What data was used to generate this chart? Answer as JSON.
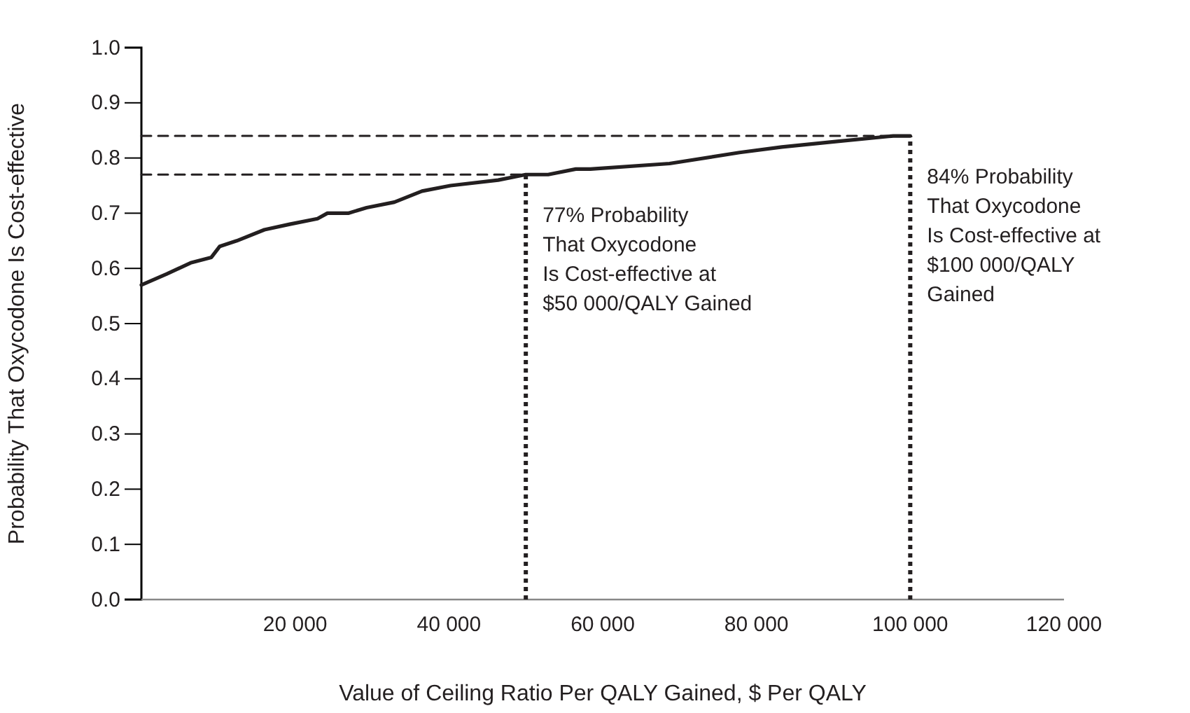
{
  "chart_data": {
    "type": "line",
    "xlabel": "Value of Ceiling Ratio Per QALY Gained, $ Per QALY",
    "ylabel": "Probability That Oxycodone Is Cost-effective",
    "xlim": [
      0,
      120000
    ],
    "ylim": [
      0,
      1
    ],
    "xticks": [
      {
        "value": 20000,
        "label": "20 000"
      },
      {
        "value": 40000,
        "label": "40 000"
      },
      {
        "value": 60000,
        "label": "60 000"
      },
      {
        "value": 80000,
        "label": "80 000"
      },
      {
        "value": 100000,
        "label": "100 000"
      },
      {
        "value": 120000,
        "label": "120 000"
      }
    ],
    "yticks": [
      {
        "value": 0,
        "label": "0.0"
      },
      {
        "value": 0.1,
        "label": "0.1"
      },
      {
        "value": 0.2,
        "label": "0.2"
      },
      {
        "value": 0.3,
        "label": "0.3"
      },
      {
        "value": 0.4,
        "label": "0.4"
      },
      {
        "value": 0.5,
        "label": "0.5"
      },
      {
        "value": 0.6,
        "label": "0.6"
      },
      {
        "value": 0.7,
        "label": "0.7"
      },
      {
        "value": 0.8,
        "label": "0.8"
      },
      {
        "value": 0.9,
        "label": "0.9"
      },
      {
        "value": 1,
        "label": "1.0"
      }
    ],
    "marker": "none",
    "series": [
      {
        "color": "#231f20",
        "line_style": "solid",
        "x": [
          0,
          3300,
          6400,
          9100,
          10200,
          12400,
          16000,
          19300,
          22900,
          24200,
          26900,
          29300,
          32900,
          36500,
          40200,
          46400,
          50000,
          52900,
          56500,
          58400,
          68700,
          77800,
          83300,
          90500,
          97800,
          100000
        ],
        "values": [
          0.57,
          0.59,
          0.61,
          0.62,
          0.64,
          0.65,
          0.67,
          0.68,
          0.69,
          0.7,
          0.7,
          0.71,
          0.72,
          0.74,
          0.75,
          0.76,
          0.77,
          0.77,
          0.78,
          0.78,
          0.79,
          0.81,
          0.82,
          0.83,
          0.84,
          0.84
        ]
      },
      {
        "color": "#231f20",
        "line_style": "dashed",
        "x": [
          0,
          50000
        ],
        "values": [
          0.77,
          0.77
        ]
      },
      {
        "color": "#231f20",
        "line_style": "dotted",
        "x": [
          50000,
          50000
        ],
        "values": [
          0,
          0.77
        ]
      },
      {
        "color": "#231f20",
        "line_style": "dashed",
        "x": [
          0,
          100000
        ],
        "values": [
          0.84,
          0.84
        ]
      },
      {
        "color": "#231f20",
        "line_style": "dotted",
        "x": [
          100000,
          100000
        ],
        "values": [
          0,
          0.84
        ]
      }
    ],
    "annotations": [
      {
        "text": "77% Probability\nThat Oxycodone\nIs Cost-effective at\n$50 000/QALY Gained",
        "x": 50000,
        "y": 0.77
      },
      {
        "text": "84% Probability\nThat Oxycodone\nIs Cost-effective at\n$100 000/QALY\nGained",
        "x": 100000,
        "y": 0.84
      }
    ]
  }
}
